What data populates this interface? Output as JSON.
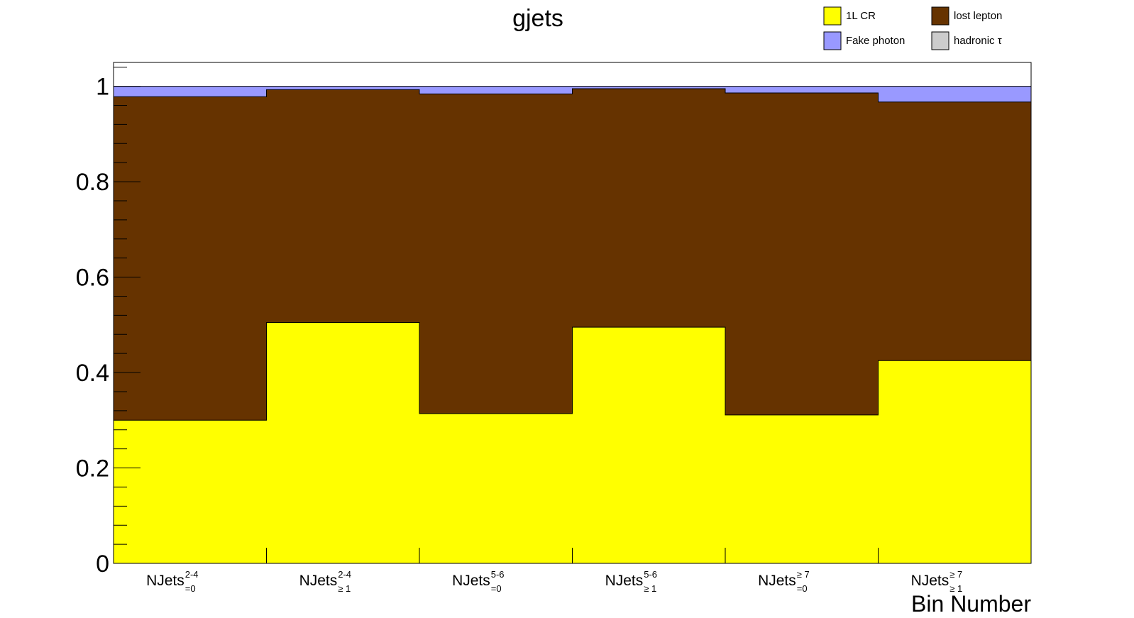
{
  "chart_data": {
    "type": "bar",
    "stacked": true,
    "title": "gjets",
    "xlabel": "Bin Number",
    "ylabel": "",
    "ylim": [
      0,
      1.05
    ],
    "yticks": [
      "0",
      "0.2",
      "0.4",
      "0.6",
      "0.8",
      "1"
    ],
    "categories": [
      {
        "main": "NJets",
        "sup": "2-4",
        "sub": "=0"
      },
      {
        "main": "NJets",
        "sup": "2-4",
        "sub": "≥ 1"
      },
      {
        "main": "NJets",
        "sup": "5-6",
        "sub": "=0"
      },
      {
        "main": "NJets",
        "sup": "5-6",
        "sub": "≥ 1"
      },
      {
        "main": "NJets",
        "sup": "≥ 7",
        "sub": "=0"
      },
      {
        "main": "NJets",
        "sup": "≥ 7",
        "sub": "≥ 1"
      }
    ],
    "series": [
      {
        "name": "1L CR",
        "color": "#ffff00",
        "values": [
          0.3,
          0.505,
          0.314,
          0.495,
          0.311,
          0.425
        ]
      },
      {
        "name": "lost lepton",
        "color": "#663300",
        "values": [
          0.678,
          0.488,
          0.67,
          0.5,
          0.675,
          0.542
        ]
      },
      {
        "name": "hadronic τ",
        "color": "#cccccc",
        "values": [
          0.0,
          0.0,
          0.0,
          0.0,
          0.0,
          0.0
        ]
      },
      {
        "name": "Fake photon",
        "color": "#9999ff",
        "values": [
          0.022,
          0.007,
          0.016,
          0.005,
          0.014,
          0.033
        ]
      }
    ],
    "legend": {
      "position": "top-right",
      "entries": [
        {
          "name": "1L CR",
          "color": "#ffff00"
        },
        {
          "name": "lost lepton",
          "color": "#663300"
        },
        {
          "name": "Fake photon",
          "color": "#9999ff"
        },
        {
          "name": "hadronic τ",
          "color": "#cccccc"
        }
      ]
    },
    "grid": false
  }
}
